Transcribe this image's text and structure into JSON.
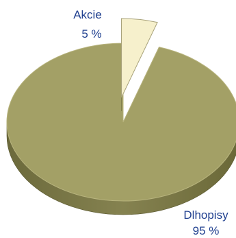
{
  "chart_data": {
    "type": "pie",
    "style": "3d",
    "slices": [
      {
        "label": "Akcie",
        "value": 5,
        "value_label": "5 %",
        "color": "#f6f0cc",
        "exploded": true
      },
      {
        "label": "Dlhopisy",
        "value": 95,
        "value_label": "95 %",
        "color": "#a3a066",
        "exploded": false
      }
    ]
  }
}
